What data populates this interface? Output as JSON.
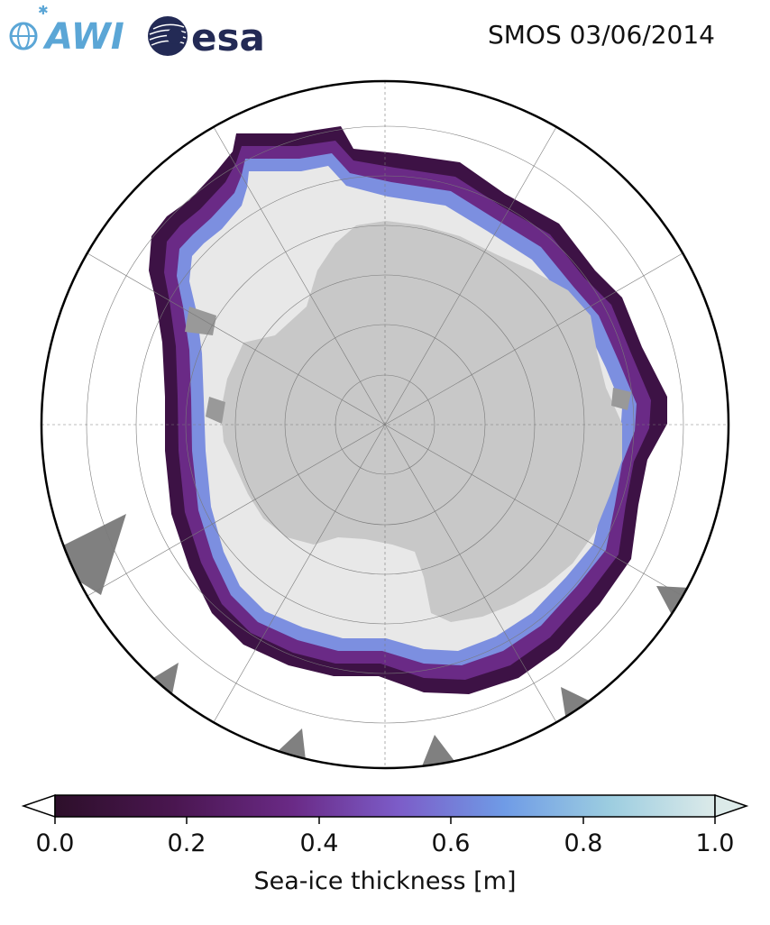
{
  "header": {
    "logo_left": "AWI",
    "logo_right": "esa",
    "title": "SMOS 03/06/2014"
  },
  "map": {
    "projection": "south-polar-stereographic",
    "graticule_rings": 7,
    "graticule_meridians": 12,
    "colors": {
      "ocean": "#ffffff",
      "antarctica": "#c8c8c8",
      "thick_ice": "#e8e8e8",
      "land_gray": "#808080",
      "coast_gray": "#999999"
    }
  },
  "colorbar": {
    "label": "Sea-ice thickness [m]",
    "min": 0.0,
    "max": 1.0,
    "ticks": [
      "0.0",
      "0.2",
      "0.4",
      "0.6",
      "0.8",
      "1.0"
    ],
    "colormap_stops": [
      "#2d0f2a",
      "#4a1650",
      "#6a2a86",
      "#7c5cc8",
      "#6f9be6",
      "#9ccde0",
      "#dceae9"
    ],
    "extend": "both"
  }
}
